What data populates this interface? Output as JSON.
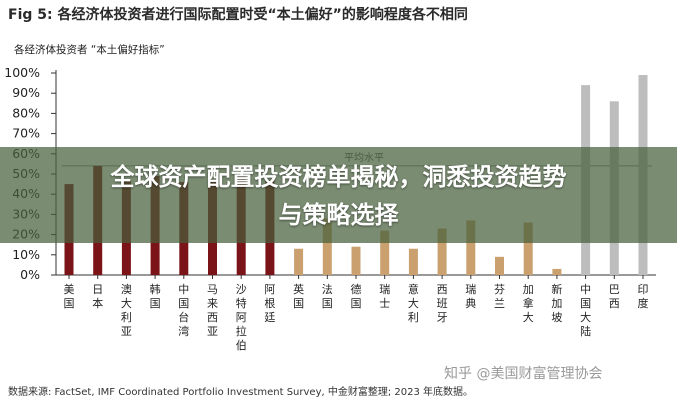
{
  "figure": {
    "title": "Fig 5:  各经济体投资者进行国际配置时受“本土偏好”的影响程度各不相同",
    "source": "数据来源: FactSet, IMF Coordinated Portfolio Investment Survey, 中金财富整理; 2023 年底数据。"
  },
  "overlay": {
    "line1": "全球资产配置投资榜单揭秘，洞悉投资趋势",
    "line2": "与策略选择"
  },
  "watermark": "知乎 @美国财富管理协会",
  "colors": {
    "developed": "#7b1418",
    "emerging": "#c9a06e",
    "brics": "#bdbdbd",
    "average_line": "#8a8a8a",
    "axis": "#333333"
  },
  "chart_data": {
    "type": "bar",
    "subtitle": "各经济体投资者 “本土偏好指标”",
    "categories": [
      "美国",
      "日本",
      "澳大利亚",
      "韩国",
      "中国台湾",
      "马来西亚",
      "沙特阿拉伯",
      "阿根廷",
      "英国",
      "法国",
      "德国",
      "瑞士",
      "意大利",
      "西班牙",
      "瑞典",
      "芬兰",
      "加拿大",
      "新加坡",
      "中国大陆",
      "巴西",
      "印度"
    ],
    "values": [
      45,
      54,
      47,
      49,
      46,
      46,
      49,
      47,
      13,
      28,
      14,
      22,
      13,
      23,
      27,
      9,
      26,
      3,
      94,
      86,
      99
    ],
    "groups": [
      "developed",
      "developed",
      "developed",
      "developed",
      "developed",
      "developed",
      "developed",
      "developed",
      "emerging",
      "emerging",
      "emerging",
      "emerging",
      "emerging",
      "emerging",
      "emerging",
      "emerging",
      "emerging",
      "emerging",
      "brics",
      "brics",
      "brics"
    ],
    "yticks": [
      "0%",
      "10%",
      "20%",
      "30%",
      "40%",
      "50%",
      "60%",
      "70%",
      "80%",
      "90%",
      "100%"
    ],
    "ylim": [
      0,
      100
    ],
    "average_line": {
      "label": "平均水平",
      "value": 54
    },
    "grid": false,
    "legend": "none"
  }
}
